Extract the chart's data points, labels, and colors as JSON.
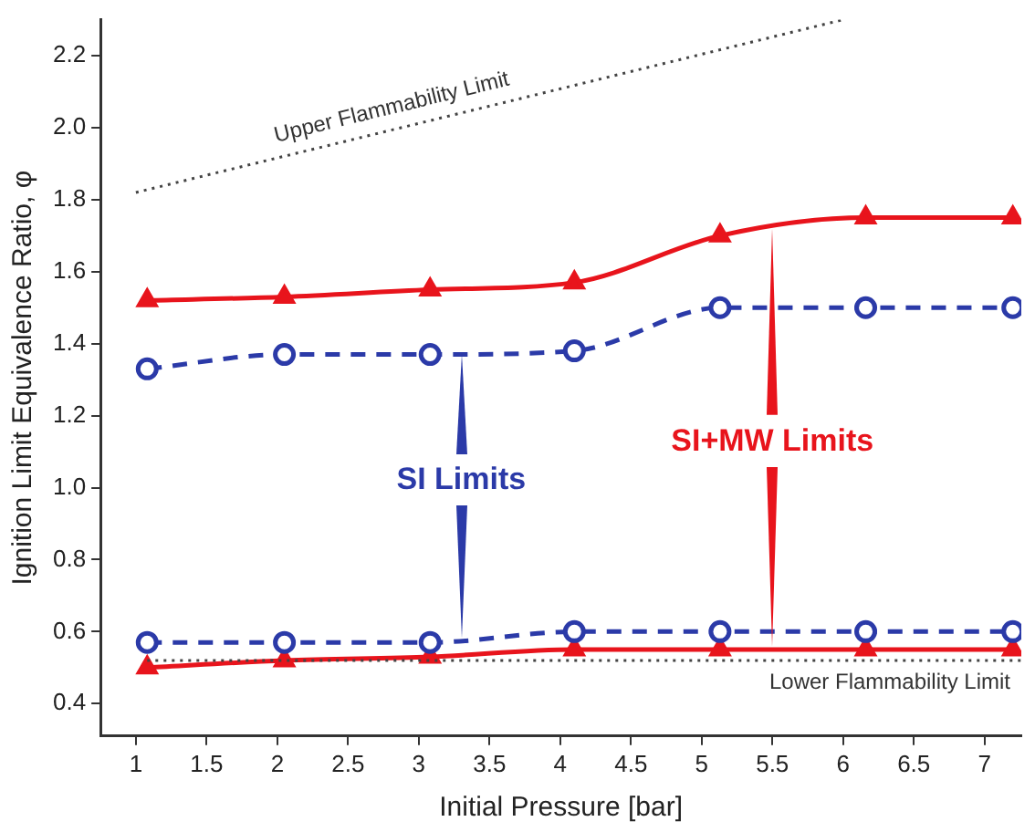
{
  "chart_data": {
    "type": "line",
    "xlabel": "Initial Pressure [bar]",
    "ylabel": "Ignition Limit Equivalence Ratio, φ",
    "x": [
      1.08,
      2.05,
      3.08,
      4.1,
      5.13,
      6.16,
      7.2
    ],
    "series": [
      {
        "color": "#e8141c",
        "values": [
          1.52,
          1.53,
          1.55,
          1.57,
          1.7,
          1.75,
          1.75
        ],
        "marker": "triangle",
        "line_style": "solid"
      },
      {
        "color": "#2b3aa8",
        "values": [
          1.33,
          1.37,
          1.37,
          1.38,
          1.5,
          1.5,
          1.5
        ],
        "marker": "circle",
        "line_style": "dashed"
      },
      {
        "color": "#2b3aa8",
        "values": [
          0.57,
          0.57,
          0.57,
          0.6,
          0.6,
          0.6,
          0.6
        ],
        "marker": "circle",
        "line_style": "dashed"
      },
      {
        "color": "#e8141c",
        "values": [
          0.5,
          0.52,
          0.53,
          0.55,
          0.55,
          0.55,
          0.55
        ],
        "marker": "triangle",
        "line_style": "solid"
      },
      {
        "name": "Upper Flammability Limit",
        "color": "#444444",
        "x": [
          1.0,
          6.0
        ],
        "values": [
          1.82,
          2.3
        ],
        "marker": "none",
        "line_style": "dotted"
      }
    ],
    "ref_lines": [
      {
        "axis": "y",
        "value": 0.52,
        "label": "Lower Flammability Limit",
        "color": "#444444",
        "line_style": "dotted"
      }
    ],
    "annotations": [
      "SI Limits",
      "SI+MW Limits"
    ],
    "xlim": [
      0.75,
      7.26
    ],
    "xticks": [
      1,
      1.5,
      2,
      2.5,
      3,
      3.5,
      4,
      4.5,
      5,
      5.5,
      6,
      6.5,
      7
    ],
    "ylim": [
      0.31,
      2.3
    ],
    "yticks": [
      0.4,
      0.6,
      0.8,
      {
        "value": 1,
        "label": "1.0"
      },
      1.2,
      1.4,
      1.6,
      1.8,
      {
        "value": 2,
        "label": "2.0"
      },
      2.2
    ],
    "grid": false,
    "legend": false
  }
}
